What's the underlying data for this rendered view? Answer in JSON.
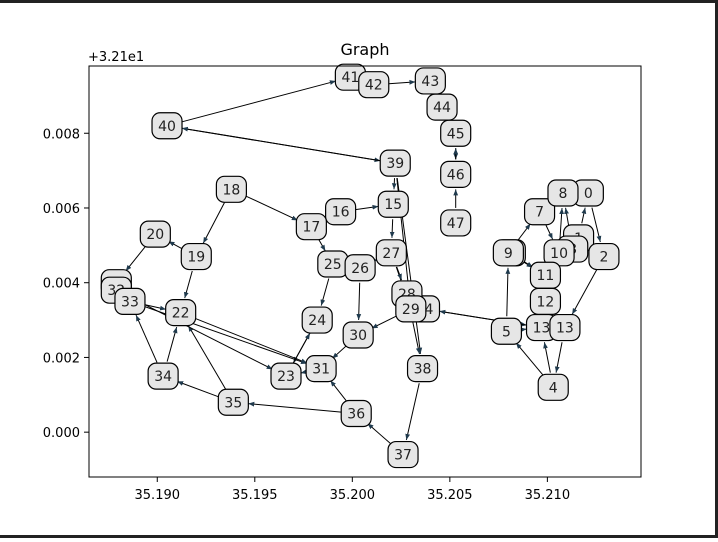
{
  "chart_data": {
    "type": "network-graph",
    "title": "Graph",
    "x_offset_label": "+3.21e1",
    "xlabel": "",
    "ylabel": "",
    "xlim": [
      35.1865,
      35.2148
    ],
    "ylim": [
      -0.0012,
      0.0098
    ],
    "x_ticks": [
      {
        "value": 35.19,
        "label": "35.190"
      },
      {
        "value": 35.195,
        "label": "35.195"
      },
      {
        "value": 35.2,
        "label": "35.200"
      },
      {
        "value": 35.205,
        "label": "35.205"
      },
      {
        "value": 35.21,
        "label": "35.210"
      }
    ],
    "y_ticks": [
      {
        "value": 0.0,
        "label": "0.000"
      },
      {
        "value": 0.002,
        "label": "0.002"
      },
      {
        "value": 0.004,
        "label": "0.004"
      },
      {
        "value": 0.006,
        "label": "0.006"
      },
      {
        "value": 0.008,
        "label": "0.008"
      }
    ],
    "grid": false,
    "nodes": [
      {
        "id": "0",
        "x": 35.2121,
        "y": 0.0064
      },
      {
        "id": "1",
        "x": 35.2116,
        "y": 0.0052
      },
      {
        "id": "2",
        "x": 35.2129,
        "y": 0.0047
      },
      {
        "id": "3",
        "x": 35.2113,
        "y": 0.0049
      },
      {
        "id": "4",
        "x": 35.2103,
        "y": 0.0012
      },
      {
        "id": "5",
        "x": 35.2079,
        "y": 0.0027
      },
      {
        "id": "6",
        "x": 35.2081,
        "y": 0.0048
      },
      {
        "id": "7",
        "x": 35.2096,
        "y": 0.0059
      },
      {
        "id": "8",
        "x": 35.2108,
        "y": 0.0064
      },
      {
        "id": "9",
        "x": 35.208,
        "y": 0.0048
      },
      {
        "id": "10",
        "x": 35.2106,
        "y": 0.0048
      },
      {
        "id": "11",
        "x": 35.2099,
        "y": 0.0042
      },
      {
        "id": "12",
        "x": 35.2099,
        "y": 0.0035
      },
      {
        "id": "13",
        "x": 35.2097,
        "y": 0.0028
      },
      {
        "id": "13b",
        "x": 35.2109,
        "y": 0.0028
      },
      {
        "id": "14",
        "x": 35.2037,
        "y": 0.0033
      },
      {
        "id": "15",
        "x": 35.2021,
        "y": 0.0061
      },
      {
        "id": "16",
        "x": 35.1994,
        "y": 0.0059
      },
      {
        "id": "17",
        "x": 35.1979,
        "y": 0.0055
      },
      {
        "id": "18",
        "x": 35.1938,
        "y": 0.0065
      },
      {
        "id": "19",
        "x": 35.192,
        "y": 0.0047
      },
      {
        "id": "20",
        "x": 35.1899,
        "y": 0.0053
      },
      {
        "id": "21",
        "x": 35.1879,
        "y": 0.004
      },
      {
        "id": "22",
        "x": 35.1912,
        "y": 0.0032
      },
      {
        "id": "23",
        "x": 35.1966,
        "y": 0.0015
      },
      {
        "id": "24",
        "x": 35.1982,
        "y": 0.003
      },
      {
        "id": "25",
        "x": 35.199,
        "y": 0.0045
      },
      {
        "id": "26",
        "x": 35.2004,
        "y": 0.0044
      },
      {
        "id": "27",
        "x": 35.202,
        "y": 0.0048
      },
      {
        "id": "28",
        "x": 35.2028,
        "y": 0.0037
      },
      {
        "id": "29",
        "x": 35.203,
        "y": 0.0033
      },
      {
        "id": "30",
        "x": 35.2003,
        "y": 0.0026
      },
      {
        "id": "31",
        "x": 35.1984,
        "y": 0.0017
      },
      {
        "id": "32",
        "x": 35.1879,
        "y": 0.0038
      },
      {
        "id": "33",
        "x": 35.1886,
        "y": 0.0035
      },
      {
        "id": "34",
        "x": 35.1903,
        "y": 0.0015
      },
      {
        "id": "35",
        "x": 35.1939,
        "y": 0.0008
      },
      {
        "id": "36",
        "x": 35.2002,
        "y": 0.0005
      },
      {
        "id": "37",
        "x": 35.2026,
        "y": -0.0006
      },
      {
        "id": "38",
        "x": 35.2036,
        "y": 0.0017
      },
      {
        "id": "39",
        "x": 35.2022,
        "y": 0.0072
      },
      {
        "id": "40",
        "x": 35.1905,
        "y": 0.0082
      },
      {
        "id": "41",
        "x": 35.1999,
        "y": 0.0095
      },
      {
        "id": "42",
        "x": 35.2011,
        "y": 0.0093
      },
      {
        "id": "43",
        "x": 35.204,
        "y": 0.0094
      },
      {
        "id": "44",
        "x": 35.2046,
        "y": 0.0087
      },
      {
        "id": "45",
        "x": 35.2053,
        "y": 0.008
      },
      {
        "id": "46",
        "x": 35.2053,
        "y": 0.0069
      },
      {
        "id": "47",
        "x": 35.2053,
        "y": 0.0056
      }
    ],
    "edges": [
      [
        "40",
        "41"
      ],
      [
        "41",
        "42"
      ],
      [
        "42",
        "43"
      ],
      [
        "43",
        "44"
      ],
      [
        "44",
        "45"
      ],
      [
        "45",
        "44"
      ],
      [
        "45",
        "46"
      ],
      [
        "46",
        "45"
      ],
      [
        "47",
        "46"
      ],
      [
        "40",
        "39"
      ],
      [
        "39",
        "40"
      ],
      [
        "39",
        "15"
      ],
      [
        "39",
        "29"
      ],
      [
        "39",
        "38"
      ],
      [
        "15",
        "27"
      ],
      [
        "16",
        "15"
      ],
      [
        "16",
        "17"
      ],
      [
        "18",
        "17"
      ],
      [
        "18",
        "19"
      ],
      [
        "19",
        "20"
      ],
      [
        "20",
        "21"
      ],
      [
        "19",
        "22"
      ],
      [
        "17",
        "25"
      ],
      [
        "25",
        "24"
      ],
      [
        "24",
        "23"
      ],
      [
        "26",
        "25"
      ],
      [
        "27",
        "26"
      ],
      [
        "26",
        "30"
      ],
      [
        "30",
        "31"
      ],
      [
        "27",
        "29"
      ],
      [
        "27",
        "28"
      ],
      [
        "28",
        "38"
      ],
      [
        "29",
        "30"
      ],
      [
        "38",
        "37"
      ],
      [
        "37",
        "36"
      ],
      [
        "36",
        "31"
      ],
      [
        "36",
        "35"
      ],
      [
        "35",
        "34"
      ],
      [
        "35",
        "22"
      ],
      [
        "34",
        "33"
      ],
      [
        "34",
        "22"
      ],
      [
        "33",
        "22"
      ],
      [
        "33",
        "31"
      ],
      [
        "32",
        "23"
      ],
      [
        "22",
        "31"
      ],
      [
        "23",
        "24"
      ],
      [
        "31",
        "23"
      ],
      [
        "14",
        "13"
      ],
      [
        "14",
        "29"
      ],
      [
        "5",
        "13"
      ],
      [
        "5",
        "9"
      ],
      [
        "9",
        "7"
      ],
      [
        "7",
        "8"
      ],
      [
        "8",
        "0"
      ],
      [
        "0",
        "2"
      ],
      [
        "1",
        "0"
      ],
      [
        "3",
        "8"
      ],
      [
        "10",
        "8"
      ],
      [
        "2",
        "13b"
      ],
      [
        "13b",
        "4"
      ],
      [
        "4",
        "13"
      ],
      [
        "4",
        "5"
      ],
      [
        "11",
        "12"
      ],
      [
        "12",
        "13"
      ],
      [
        "9",
        "11"
      ],
      [
        "6",
        "11"
      ],
      [
        "7",
        "10"
      ],
      [
        "11",
        "10"
      ],
      [
        "3",
        "1"
      ],
      [
        "2",
        "1"
      ],
      [
        "13",
        "14"
      ]
    ]
  }
}
